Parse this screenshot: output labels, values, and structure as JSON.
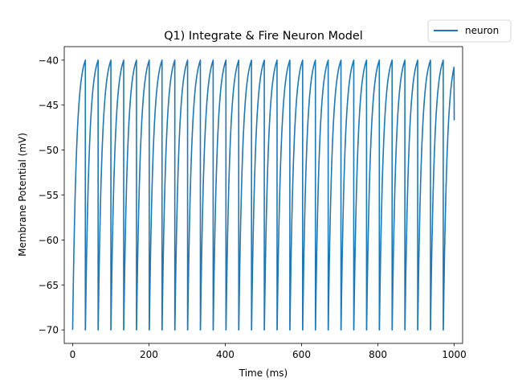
{
  "chart_data": {
    "type": "line",
    "title": "Q1) Integrate & Fire Neuron Model",
    "xlabel": "Time (ms)",
    "ylabel": "Membrane Potential (mV)",
    "xlim": [
      -22,
      1022
    ],
    "ylim": [
      -71.5,
      -38.5
    ],
    "xticks": [
      0,
      200,
      400,
      600,
      800,
      1000
    ],
    "yticks": [
      -70,
      -65,
      -60,
      -55,
      -50,
      -45,
      -40
    ],
    "xtick_labels": [
      "0",
      "200",
      "400",
      "600",
      "800",
      "1000"
    ],
    "ytick_labels": [
      "−70",
      "−65",
      "−60",
      "−55",
      "−50",
      "−45",
      "−40"
    ],
    "grid": false,
    "legend_position": "upper-right, outside plot",
    "series": [
      {
        "name": "neuron",
        "color": "#1f77b4",
        "model": {
          "rest_mV": -70,
          "threshold_mV": -40,
          "reset_mV": -70,
          "spike_period_ms": 33.5,
          "time_constant_ms": 10,
          "t_start_ms": 0,
          "t_end_ms": 1000,
          "final_value_mV": -46.7
        }
      }
    ]
  }
}
